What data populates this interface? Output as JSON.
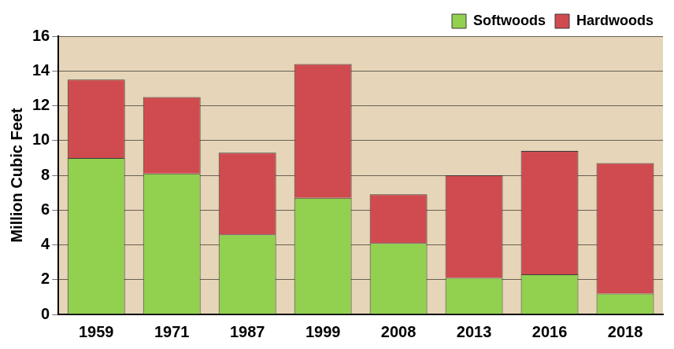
{
  "chart_data": {
    "type": "bar",
    "stacked": true,
    "categories": [
      "1959",
      "1971",
      "1987",
      "1999",
      "2008",
      "2013",
      "2016",
      "2018"
    ],
    "series": [
      {
        "name": "Softwoods",
        "color": "#92d050",
        "values": [
          9.0,
          8.1,
          4.6,
          6.7,
          4.1,
          2.1,
          2.3,
          1.2
        ]
      },
      {
        "name": "Hardwoods",
        "color": "#d04b4f",
        "values": [
          4.5,
          4.4,
          4.7,
          7.7,
          2.8,
          5.9,
          7.1,
          7.5
        ]
      }
    ],
    "y_label": "Million Cubic Feet",
    "ylim": [
      0,
      16
    ],
    "yticks": [
      0,
      2,
      4,
      6,
      8,
      10,
      12,
      14,
      16
    ],
    "grid": "y",
    "legend": "top right"
  }
}
